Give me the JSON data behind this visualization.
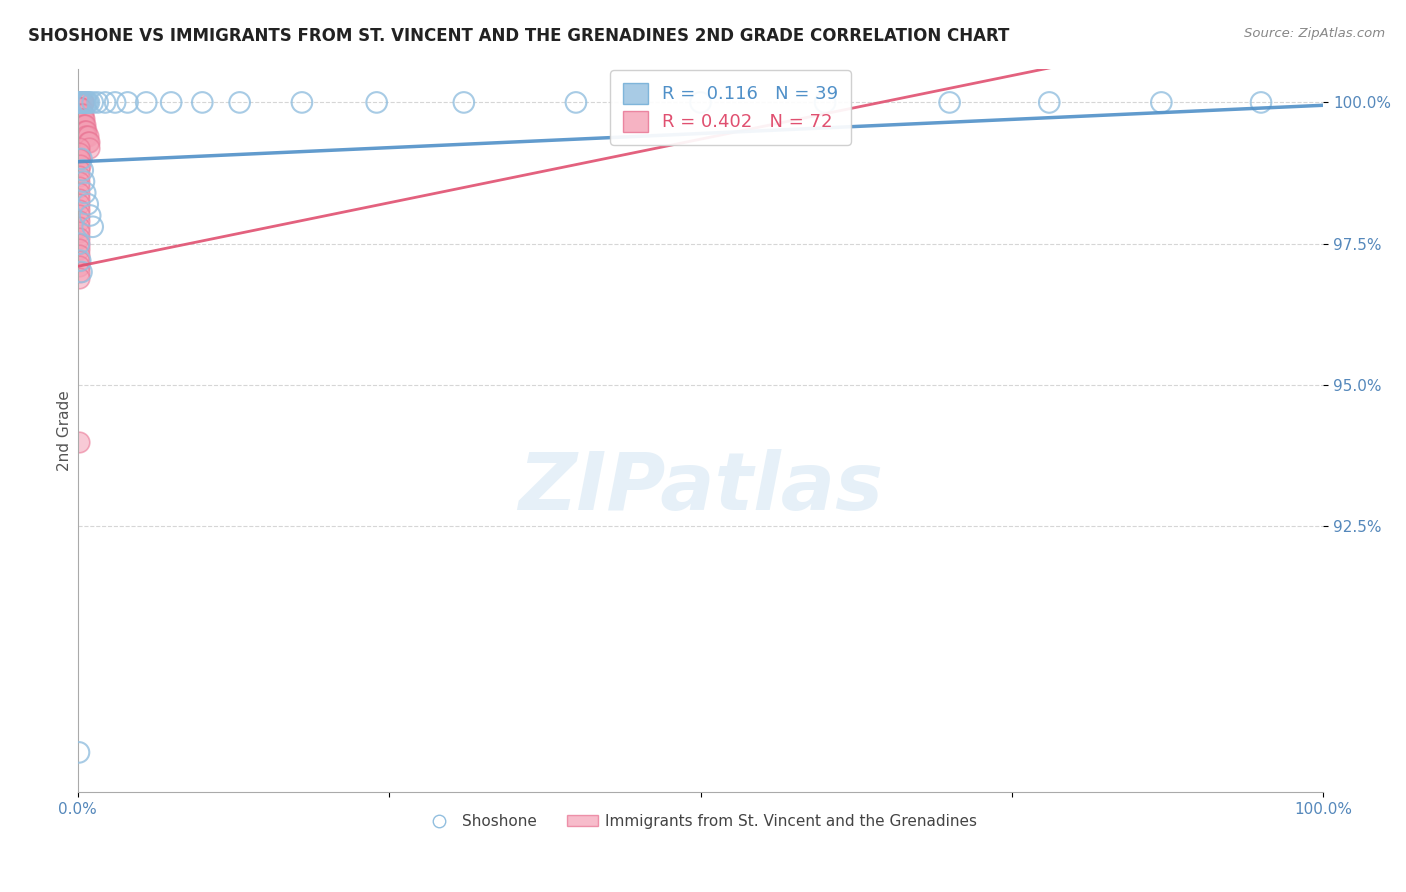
{
  "title": "SHOSHONE VS IMMIGRANTS FROM ST. VINCENT AND THE GRENADINES 2ND GRADE CORRELATION CHART",
  "source_text": "Source: ZipAtlas.com",
  "ylabel": "2nd Grade",
  "xlim": [
    0.0,
    1.0
  ],
  "ylim": [
    0.878,
    1.006
  ],
  "yticks": [
    0.925,
    0.95,
    0.975,
    1.0
  ],
  "ytick_labels": [
    "92.5%",
    "95.0%",
    "97.5%",
    "100.0%"
  ],
  "xtick_labels": [
    "0.0%",
    "100.0%"
  ],
  "xtick_positions": [
    0.0,
    1.0
  ],
  "legend_labels": [
    "Shoshone",
    "Immigrants from St. Vincent and the Grenadines"
  ],
  "shoshone_R": 0.116,
  "shoshone_N": 39,
  "stv_R": 0.402,
  "stv_N": 72,
  "shoshone_color": "#92bfdf",
  "stv_color": "#f4a0b5",
  "shoshone_edge_color": "#6aaad4",
  "stv_edge_color": "#e87090",
  "shoshone_line_color": "#5090c8",
  "stv_line_color": "#e05070",
  "background_color": "#ffffff",
  "shoshone_x": [
    0.001,
    0.002,
    0.003,
    0.004,
    0.005,
    0.006,
    0.007,
    0.008,
    0.009,
    0.012,
    0.016,
    0.022,
    0.03,
    0.04,
    0.055,
    0.075,
    0.1,
    0.13,
    0.18,
    0.24,
    0.31,
    0.4,
    0.5,
    0.6,
    0.7,
    0.78,
    0.87,
    0.95,
    0.003,
    0.004,
    0.005,
    0.006,
    0.008,
    0.01,
    0.012,
    0.001,
    0.002,
    0.003,
    0.001
  ],
  "shoshone_y": [
    1.0,
    1.0,
    1.0,
    1.0,
    1.0,
    1.0,
    1.0,
    1.0,
    1.0,
    1.0,
    1.0,
    1.0,
    1.0,
    1.0,
    1.0,
    1.0,
    1.0,
    1.0,
    1.0,
    1.0,
    1.0,
    1.0,
    1.0,
    1.0,
    1.0,
    1.0,
    1.0,
    1.0,
    0.99,
    0.988,
    0.986,
    0.984,
    0.982,
    0.98,
    0.978,
    0.975,
    0.972,
    0.97,
    0.885
  ],
  "stv_x": [
    0.0005,
    0.001,
    0.0015,
    0.002,
    0.0025,
    0.003,
    0.0035,
    0.004,
    0.0045,
    0.001,
    0.001,
    0.001,
    0.001,
    0.001,
    0.001,
    0.001,
    0.001,
    0.001,
    0.001,
    0.002,
    0.002,
    0.002,
    0.002,
    0.002,
    0.002,
    0.003,
    0.003,
    0.003,
    0.003,
    0.003,
    0.004,
    0.004,
    0.004,
    0.004,
    0.005,
    0.005,
    0.005,
    0.006,
    0.006,
    0.006,
    0.007,
    0.007,
    0.008,
    0.008,
    0.009,
    0.009,
    0.001,
    0.001,
    0.001,
    0.002,
    0.002,
    0.001,
    0.001,
    0.001,
    0.001,
    0.001,
    0.001,
    0.001,
    0.001,
    0.001,
    0.001,
    0.001,
    0.001,
    0.001,
    0.001,
    0.001,
    0.001,
    0.001,
    0.001,
    0.001,
    0.001,
    0.001
  ],
  "stv_y": [
    1.0,
    1.0,
    1.0,
    1.0,
    1.0,
    1.0,
    1.0,
    1.0,
    1.0,
    0.999,
    0.999,
    0.999,
    0.999,
    0.999,
    0.998,
    0.998,
    0.997,
    0.997,
    0.996,
    0.999,
    0.999,
    0.998,
    0.998,
    0.997,
    0.997,
    0.999,
    0.998,
    0.997,
    0.997,
    0.996,
    0.998,
    0.997,
    0.996,
    0.995,
    0.997,
    0.996,
    0.995,
    0.996,
    0.995,
    0.994,
    0.995,
    0.994,
    0.994,
    0.993,
    0.993,
    0.992,
    0.992,
    0.991,
    0.99,
    0.99,
    0.989,
    0.988,
    0.987,
    0.986,
    0.985,
    0.984,
    0.983,
    0.982,
    0.981,
    0.98,
    0.979,
    0.978,
    0.977,
    0.976,
    0.975,
    0.974,
    0.973,
    0.972,
    0.971,
    0.97,
    0.969,
    0.94
  ],
  "shoshone_trendline": [
    0.9895,
    0.9995
  ],
  "stv_trendline_x": [
    0.0,
    0.012
  ],
  "stv_trendline_y": [
    0.97,
    1.001
  ],
  "marker_size": 220
}
